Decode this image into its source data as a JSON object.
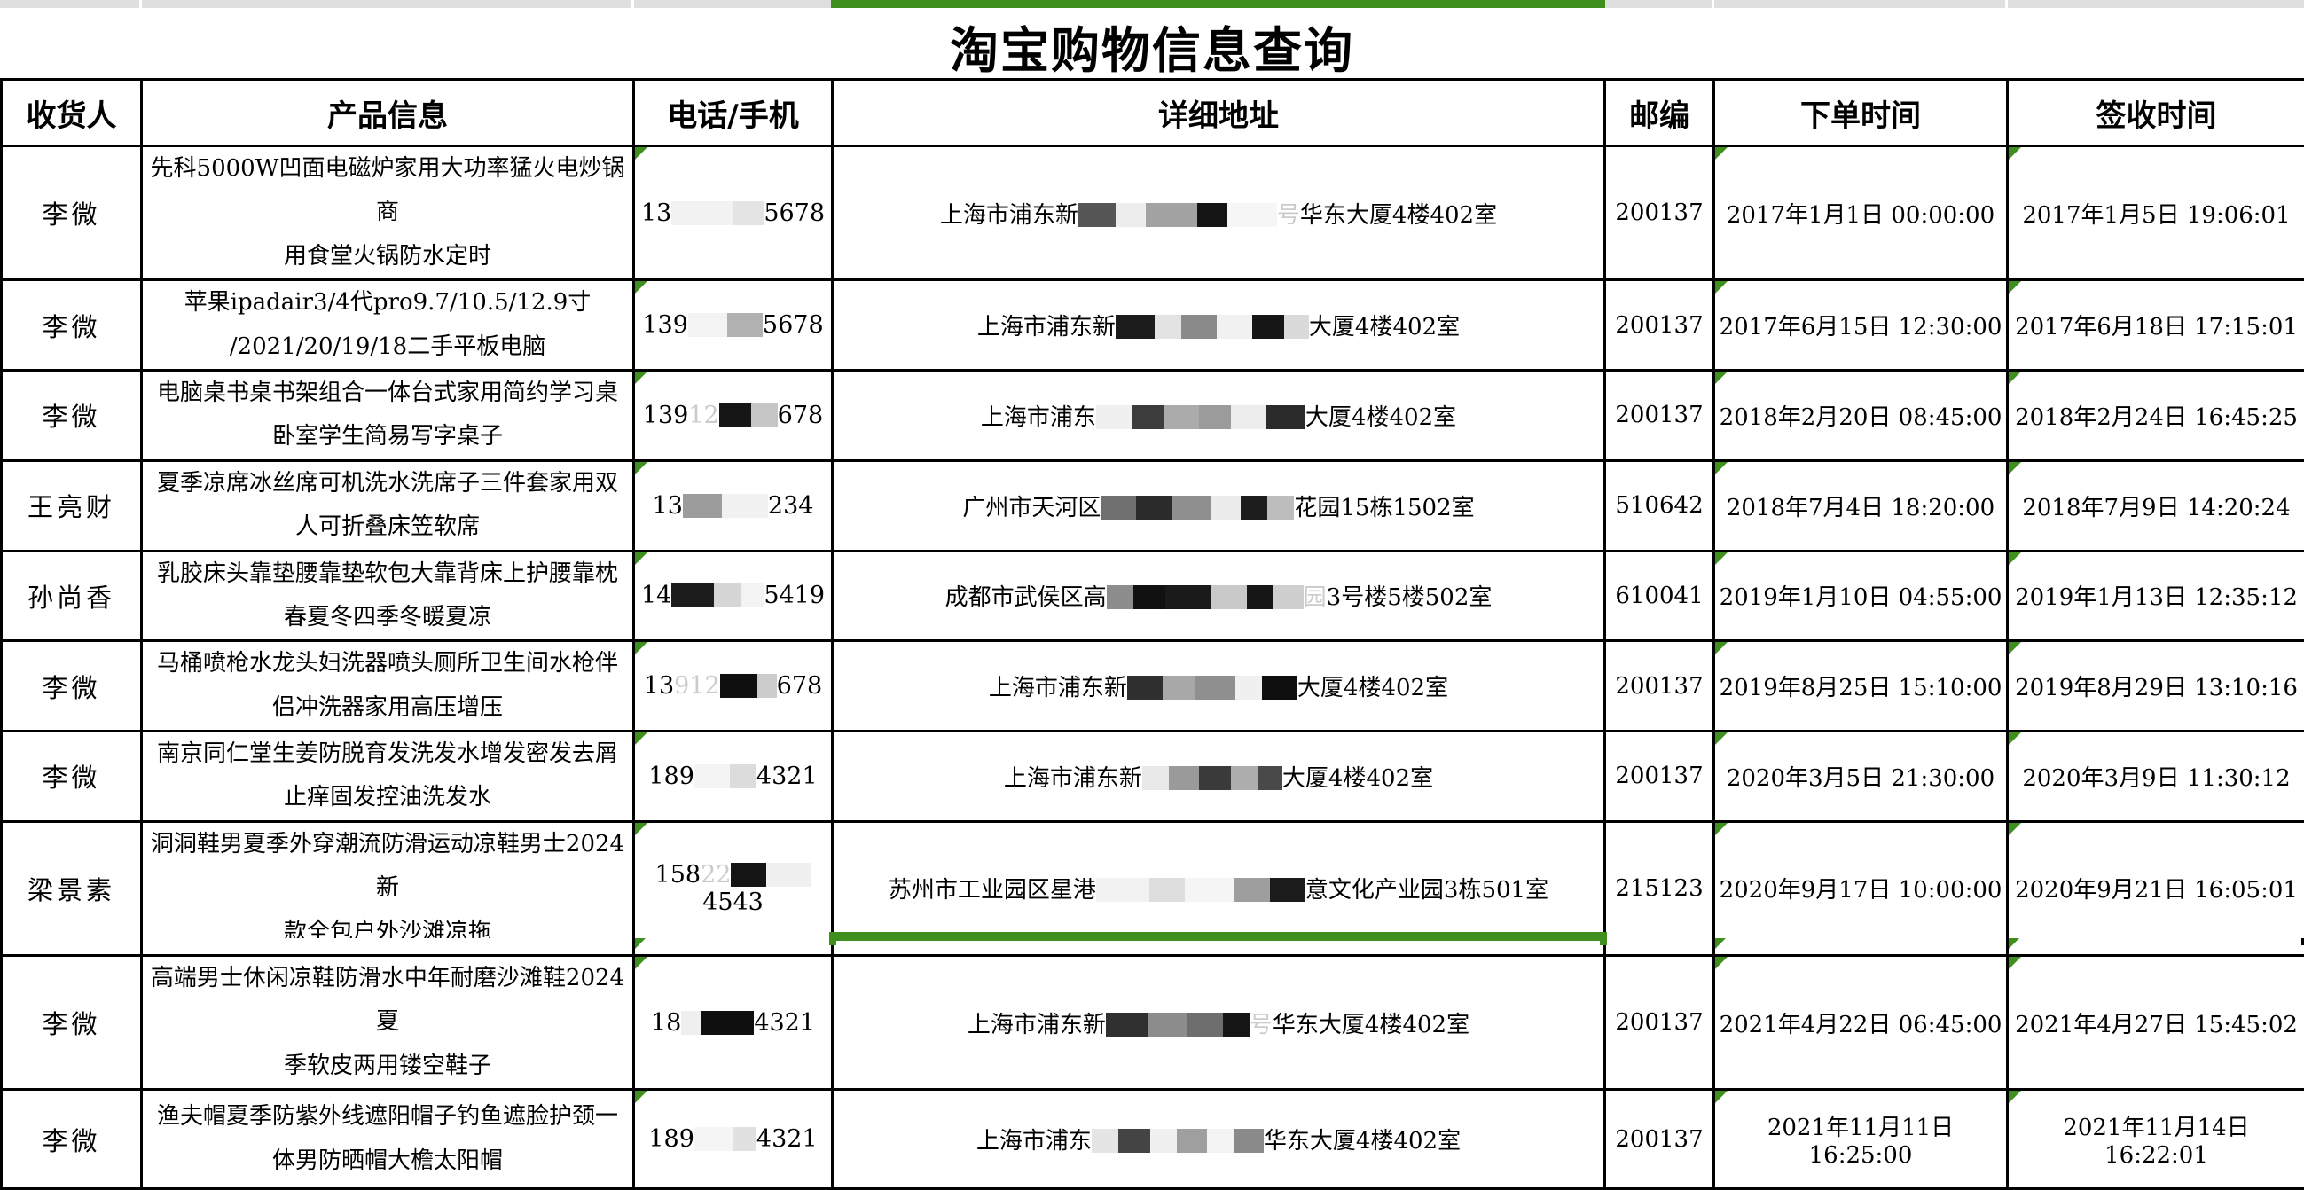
{
  "title": "淘宝购物信息查询",
  "colors": {
    "selection_green": "#3e8f1d",
    "strip_gray": "#dfdfdf",
    "border_black": "#000000"
  },
  "columns": [
    {
      "key": "name",
      "label": "收货人"
    },
    {
      "key": "product",
      "label": "产品信息"
    },
    {
      "key": "phone",
      "label": "电话/手机"
    },
    {
      "key": "address",
      "label": "详细地址"
    },
    {
      "key": "post",
      "label": "邮编"
    },
    {
      "key": "order",
      "label": "下单时间"
    },
    {
      "key": "sign",
      "label": "签收时间"
    }
  ],
  "flag_columns": [
    "phone",
    "order",
    "sign"
  ],
  "rows": [
    {
      "name": "李微",
      "product": [
        "先科5000W凹面电磁炉家用大功率猛火电炒锅商",
        "用食堂火锅防水定时"
      ],
      "phone": [
        {
          "t": "13"
        },
        {
          "b": "#f2f2f2",
          "w": 70
        },
        {
          "b": "#e4e4e4",
          "w": 34
        },
        {
          "t": "5678"
        }
      ],
      "address": [
        {
          "t": "上海市浦东新"
        },
        {
          "b": "#565656",
          "w": 42
        },
        {
          "b": "#ededed",
          "w": 34
        },
        {
          "b": "#a3a3a3",
          "w": 58
        },
        {
          "b": "#141414",
          "w": 34
        },
        {
          "b": "#f6f6f6",
          "w": 56
        },
        {
          "t": "号",
          "faint": true
        },
        {
          "t": "华东大厦4楼402室"
        }
      ],
      "post": "200137",
      "order": "2017年1月1日 00:00:00",
      "sign": "2017年1月5日 19:06:01"
    },
    {
      "name": "李微",
      "product": [
        "苹果ipadair3/4代pro9.7/10.5/12.9寸",
        "/2021/20/19/18二手平板电脑"
      ],
      "phone": [
        {
          "t": "139"
        },
        {
          "b": "#f3f3f3",
          "w": 44
        },
        {
          "b": "#b1b1b1",
          "w": 40
        },
        {
          "t": "5678"
        }
      ],
      "address": [
        {
          "t": "上海市浦东新"
        },
        {
          "b": "#1c1c1c",
          "w": 44
        },
        {
          "b": "#e3e3e3",
          "w": 30
        },
        {
          "b": "#8a8a8a",
          "w": 40
        },
        {
          "b": "#f1f1f1",
          "w": 40
        },
        {
          "b": "#161616",
          "w": 36
        },
        {
          "b": "#dadada",
          "w": 28
        },
        {
          "t": "大厦4楼402室"
        }
      ],
      "post": "200137",
      "order": "2017年6月15日 12:30:00",
      "sign": "2017年6月18日 17:15:01"
    },
    {
      "name": "李微",
      "product": [
        "电脑桌书桌书架组合一体台式家用简约学习桌",
        "卧室学生简易写字桌子"
      ],
      "phone": [
        {
          "t": "139"
        },
        {
          "t": "12",
          "faint": true
        },
        {
          "b": "#161616",
          "w": 36
        },
        {
          "b": "#c6c6c6",
          "w": 30
        },
        {
          "t": "678"
        }
      ],
      "address": [
        {
          "t": "上海市浦东"
        },
        {
          "b": "#f0f0f0",
          "w": 40
        },
        {
          "b": "#3c3c3c",
          "w": 36
        },
        {
          "b": "#ababab",
          "w": 40
        },
        {
          "b": "#9b9b9b",
          "w": 36
        },
        {
          "b": "#ededed",
          "w": 40
        },
        {
          "b": "#2a2a2a",
          "w": 44
        },
        {
          "t": "大厦4楼402室"
        }
      ],
      "post": "200137",
      "order": "2018年2月20日 08:45:00",
      "sign": "2018年2月24日 16:45:25"
    },
    {
      "name": "王亮财",
      "product": [
        "夏季凉席冰丝席可机洗水洗席子三件套家用双",
        "人可折叠床笠软席"
      ],
      "phone": [
        {
          "t": "13"
        },
        {
          "b": "#9c9c9c",
          "w": 44
        },
        {
          "b": "#f1f1f1",
          "w": 52
        },
        {
          "t": "234"
        }
      ],
      "address": [
        {
          "t": "广州市天河区"
        },
        {
          "b": "#6f6f6f",
          "w": 40
        },
        {
          "b": "#2b2b2b",
          "w": 40
        },
        {
          "b": "#8f8f8f",
          "w": 44
        },
        {
          "b": "#ececec",
          "w": 34
        },
        {
          "b": "#1d1d1d",
          "w": 30
        },
        {
          "b": "#bdbdbd",
          "w": 30
        },
        {
          "t": "花园15栋1502室"
        }
      ],
      "post": "510642",
      "order": "2018年7月4日 18:20:00",
      "sign": "2018年7月9日 14:20:24"
    },
    {
      "name": "孙尚香",
      "product": [
        "乳胶床头靠垫腰靠垫软包大靠背床上护腰靠枕",
        "春夏冬四季冬暖夏凉"
      ],
      "phone": [
        {
          "t": "14"
        },
        {
          "b": "#1c1c1c",
          "w": 48
        },
        {
          "b": "#d6d6d6",
          "w": 30
        },
        {
          "b": "#f3f3f3",
          "w": 26
        },
        {
          "t": "5419"
        }
      ],
      "address": [
        {
          "t": "成都市武侯区高"
        },
        {
          "b": "#8d8d8d",
          "w": 30
        },
        {
          "b": "#111111",
          "w": 36
        },
        {
          "b": "#1a1a1a",
          "w": 52
        },
        {
          "b": "#c9c9c9",
          "w": 40
        },
        {
          "b": "#161616",
          "w": 30
        },
        {
          "b": "#cfcfcf",
          "w": 34
        },
        {
          "t": "园",
          "faint": true
        },
        {
          "t": "3号楼5楼502室"
        }
      ],
      "post": "610041",
      "order": "2019年1月10日 04:55:00",
      "sign": "2019年1月13日 12:35:12"
    },
    {
      "name": "李微",
      "product": [
        "马桶喷枪水龙头妇洗器喷头厕所卫生间水枪伴",
        "侣冲洗器家用高压增压"
      ],
      "phone": [
        {
          "t": "13"
        },
        {
          "t": "912",
          "faint": true
        },
        {
          "b": "#0f0f0f",
          "w": 42
        },
        {
          "b": "#cccccc",
          "w": 22
        },
        {
          "t": "678"
        }
      ],
      "address": [
        {
          "t": "上海市浦东新"
        },
        {
          "b": "#2f2f2f",
          "w": 40
        },
        {
          "b": "#a8a8a8",
          "w": 36
        },
        {
          "b": "#8f8f8f",
          "w": 46
        },
        {
          "b": "#f0f0f0",
          "w": 30
        },
        {
          "b": "#0f0f0f",
          "w": 40
        },
        {
          "t": "大厦4楼402室"
        }
      ],
      "post": "200137",
      "order": "2019年8月25日 15:10:00",
      "sign": "2019年8月29日 13:10:16"
    },
    {
      "name": "李微",
      "product": [
        "南京同仁堂生姜防脱育发洗发水增发密发去屑",
        "止痒固发控油洗发水"
      ],
      "phone": [
        {
          "t": "189"
        },
        {
          "b": "#f4f4f4",
          "w": 40
        },
        {
          "b": "#dcdcdc",
          "w": 30
        },
        {
          "t": "4321"
        }
      ],
      "address": [
        {
          "t": "上海市浦东新"
        },
        {
          "b": "#e8e8e8",
          "w": 30
        },
        {
          "b": "#9a9a9a",
          "w": 34
        },
        {
          "b": "#3a3a3a",
          "w": 36
        },
        {
          "b": "#adadad",
          "w": 30
        },
        {
          "b": "#494949",
          "w": 28
        },
        {
          "t": "大厦4楼402室"
        }
      ],
      "post": "200137",
      "order": "2020年3月5日 21:30:00",
      "sign": "2020年3月9日 11:30:12"
    },
    {
      "name": "梁景素",
      "product": [
        "洞洞鞋男夏季外穿潮流防滑运动凉鞋男士2024新",
        "款全包户外沙滩凉拖"
      ],
      "phone": [
        {
          "t": "158"
        },
        {
          "t": "22",
          "faint": true
        },
        {
          "b": "#141414",
          "w": 40
        },
        {
          "b": "#f0f0f0",
          "w": 50
        },
        {
          "t": "4543"
        }
      ],
      "address": [
        {
          "t": "苏州市工业园区星港"
        },
        {
          "b": "#f2f2f2",
          "w": 60
        },
        {
          "b": "#dedede",
          "w": 40
        },
        {
          "b": "#f5f5f5",
          "w": 56
        },
        {
          "b": "#9e9e9e",
          "w": 40
        },
        {
          "b": "#1b1b1b",
          "w": 40
        },
        {
          "t": "意文化产业园3栋501室"
        }
      ],
      "post": "215123",
      "order": "2020年9月17日 10:00:00",
      "sign": "2020年9月21日 16:05:01"
    },
    {
      "name": "李微",
      "product": [
        "高端男士休闲凉鞋防滑水中年耐磨沙滩鞋2024夏",
        "季软皮两用镂空鞋子"
      ],
      "phone": [
        {
          "t": "18"
        },
        {
          "b": "#efefef",
          "w": 22
        },
        {
          "b": "#0f0f0f",
          "w": 60
        },
        {
          "t": "4321"
        }
      ],
      "address": [
        {
          "t": "上海市浦东新"
        },
        {
          "b": "#303030",
          "w": 48
        },
        {
          "b": "#8c8c8c",
          "w": 44
        },
        {
          "b": "#6e6e6e",
          "w": 40
        },
        {
          "b": "#161616",
          "w": 30
        },
        {
          "t": "号",
          "faint": true
        },
        {
          "t": "华东大厦4楼402室"
        }
      ],
      "post": "200137",
      "order": "2021年4月22日 06:45:00",
      "sign": "2021年4月27日 15:45:02"
    },
    {
      "name": "李微",
      "product": [
        "渔夫帽夏季防紫外线遮阳帽子钓鱼遮脸护颈一",
        "体男防晒帽大檐太阳帽"
      ],
      "phone": [
        {
          "t": "189"
        },
        {
          "b": "#f5f5f5",
          "w": 44
        },
        {
          "b": "#e1e1e1",
          "w": 26
        },
        {
          "t": "4321"
        }
      ],
      "address": [
        {
          "t": "上海市浦东"
        },
        {
          "b": "#e5e5e5",
          "w": 30
        },
        {
          "b": "#444444",
          "w": 36
        },
        {
          "b": "#f0f0f0",
          "w": 30
        },
        {
          "b": "#9f9f9f",
          "w": 34
        },
        {
          "b": "#f3f3f3",
          "w": 30
        },
        {
          "b": "#8a8a8a",
          "w": 34
        },
        {
          "t": "华东大厦4楼402室"
        }
      ],
      "post": "200137",
      "order": "2021年11月11日 16:25:00",
      "sign": "2021年11月14日 16:22:01"
    }
  ]
}
